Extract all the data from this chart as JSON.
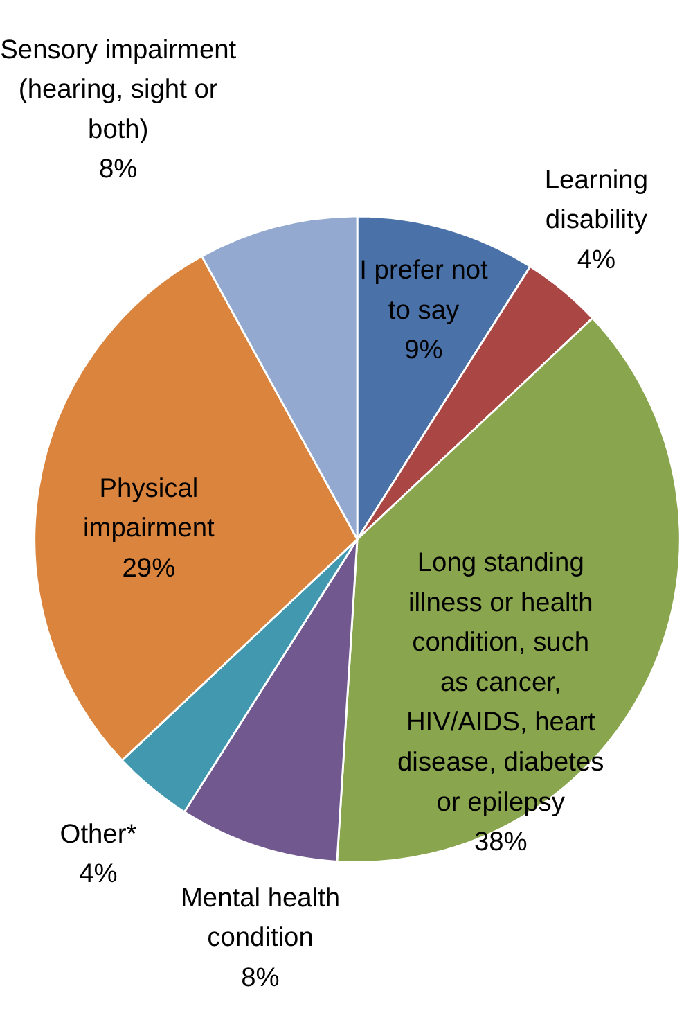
{
  "chart_data": {
    "type": "pie",
    "categories": [
      "I prefer not to say",
      "Learning disability",
      "Long standing illness or health condition, such as cancer, HIV/AIDS, heart disease, diabetes or epilepsy",
      "Mental health condition",
      "Other*",
      "Physical impairment",
      "Sensory impairment (hearing, sight or both)"
    ],
    "values": [
      9,
      4,
      38,
      8,
      4,
      29,
      8
    ],
    "value_labels": [
      "9%",
      "4%",
      "38%",
      "8%",
      "4%",
      "29%",
      "8%"
    ],
    "colors": [
      "#4a72a8",
      "#aa4643",
      "#89a54e",
      "#71588f",
      "#4198af",
      "#db843d",
      "#93a9cf"
    ],
    "legend": false
  }
}
